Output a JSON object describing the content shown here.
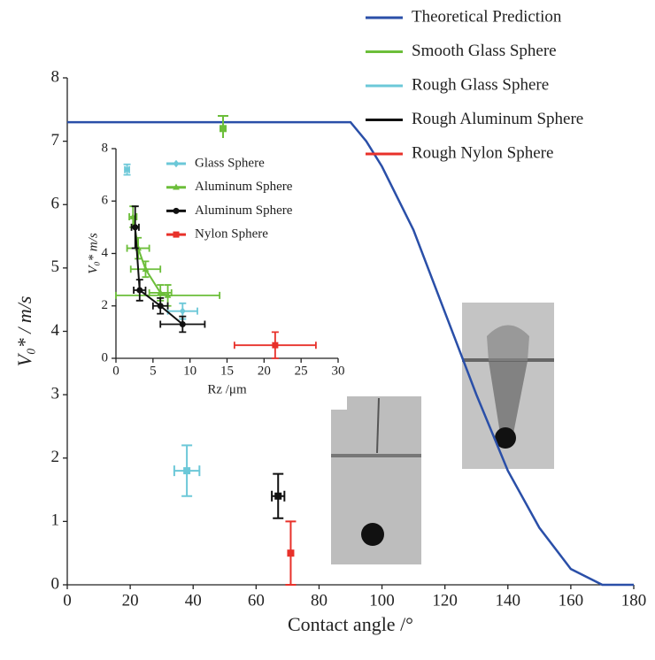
{
  "chart_data": [
    {
      "type": "scatter",
      "xlabel": "Contact angle /°",
      "ylabel": "V₀* / m/s",
      "xlim": [
        0,
        180
      ],
      "xticks": [
        0,
        20,
        40,
        60,
        80,
        100,
        120,
        140,
        160,
        180
      ],
      "ylim": [
        0,
        8
      ],
      "yticks": [
        0,
        1,
        2,
        3,
        4,
        5,
        6,
        7,
        8
      ],
      "series": [
        {
          "name": "Theoretical Prediction",
          "color": "#2a4fa8",
          "kind": "line",
          "x": [
            0,
            90,
            95,
            100,
            110,
            120,
            130,
            140,
            150,
            160,
            170,
            180
          ],
          "values": [
            7.3,
            7.3,
            7.0,
            6.6,
            5.6,
            4.3,
            3.0,
            1.8,
            0.9,
            0.25,
            0,
            0
          ]
        },
        {
          "name": "Smooth Glass Sphere",
          "color": "#6cbe3a",
          "marker": "square",
          "x": [
            49.5
          ],
          "values": [
            7.2
          ],
          "xerr": [
            0
          ],
          "yerr": [
            0.2
          ]
        },
        {
          "name": "Rough Glass Sphere",
          "color": "#6cc8d8",
          "marker": "square",
          "x": [
            38
          ],
          "values": [
            1.8
          ],
          "xerr": [
            4
          ],
          "yerr": [
            0.4
          ]
        },
        {
          "name": "Rough Aluminum Sphere",
          "color": "#111111",
          "marker": "square",
          "x": [
            67
          ],
          "values": [
            1.4
          ],
          "xerr": [
            2
          ],
          "yerr": [
            0.35
          ]
        },
        {
          "name": "Rough Nylon Sphere",
          "color": "#e8312a",
          "marker": "square",
          "x": [
            71
          ],
          "values": [
            0.5
          ],
          "xerr": [
            0
          ],
          "yerr": [
            0.5
          ]
        }
      ]
    },
    {
      "type": "scatter",
      "xlabel": "Rz /μm",
      "ylabel": "V₀* m/s",
      "xlim": [
        0,
        30
      ],
      "xticks": [
        0,
        5,
        10,
        15,
        20,
        25,
        30
      ],
      "ylim": [
        0,
        8
      ],
      "yticks": [
        0,
        2,
        4,
        6,
        8
      ],
      "series": [
        {
          "name": "Glass Sphere",
          "color": "#6cc8d8",
          "marker": "diamond",
          "x": [
            1.5,
            9
          ],
          "values": [
            7.2,
            1.8
          ],
          "xerr": [
            0.3,
            2
          ],
          "yerr": [
            0.2,
            0.3
          ]
        },
        {
          "name": "Aluminum Sphere",
          "color": "#6cbe3a",
          "marker": "triangle",
          "kind": "linepoints",
          "x": [
            2.3,
            3,
            4,
            6,
            7
          ],
          "values": [
            5.4,
            4.2,
            3.4,
            2.5,
            2.4
          ],
          "xerr": [
            0.5,
            1.5,
            2,
            1.5,
            7
          ],
          "yerr": [
            0.4,
            0.4,
            0.3,
            0.3,
            0.4
          ]
        },
        {
          "name": "Aluminum Sphere",
          "color": "#111111",
          "marker": "circle",
          "kind": "linepoints",
          "x": [
            2.6,
            3.2,
            6,
            9
          ],
          "values": [
            5.0,
            2.6,
            2.0,
            1.3
          ],
          "xerr": [
            0.5,
            0.8,
            1,
            3
          ],
          "yerr": [
            0.8,
            0.4,
            0.3,
            0.3
          ]
        },
        {
          "name": "Nylon Sphere",
          "color": "#e8312a",
          "marker": "square",
          "x": [
            21.5
          ],
          "values": [
            0.5
          ],
          "xerr": [
            5.5
          ],
          "yerr": [
            0.5
          ]
        }
      ]
    }
  ]
}
